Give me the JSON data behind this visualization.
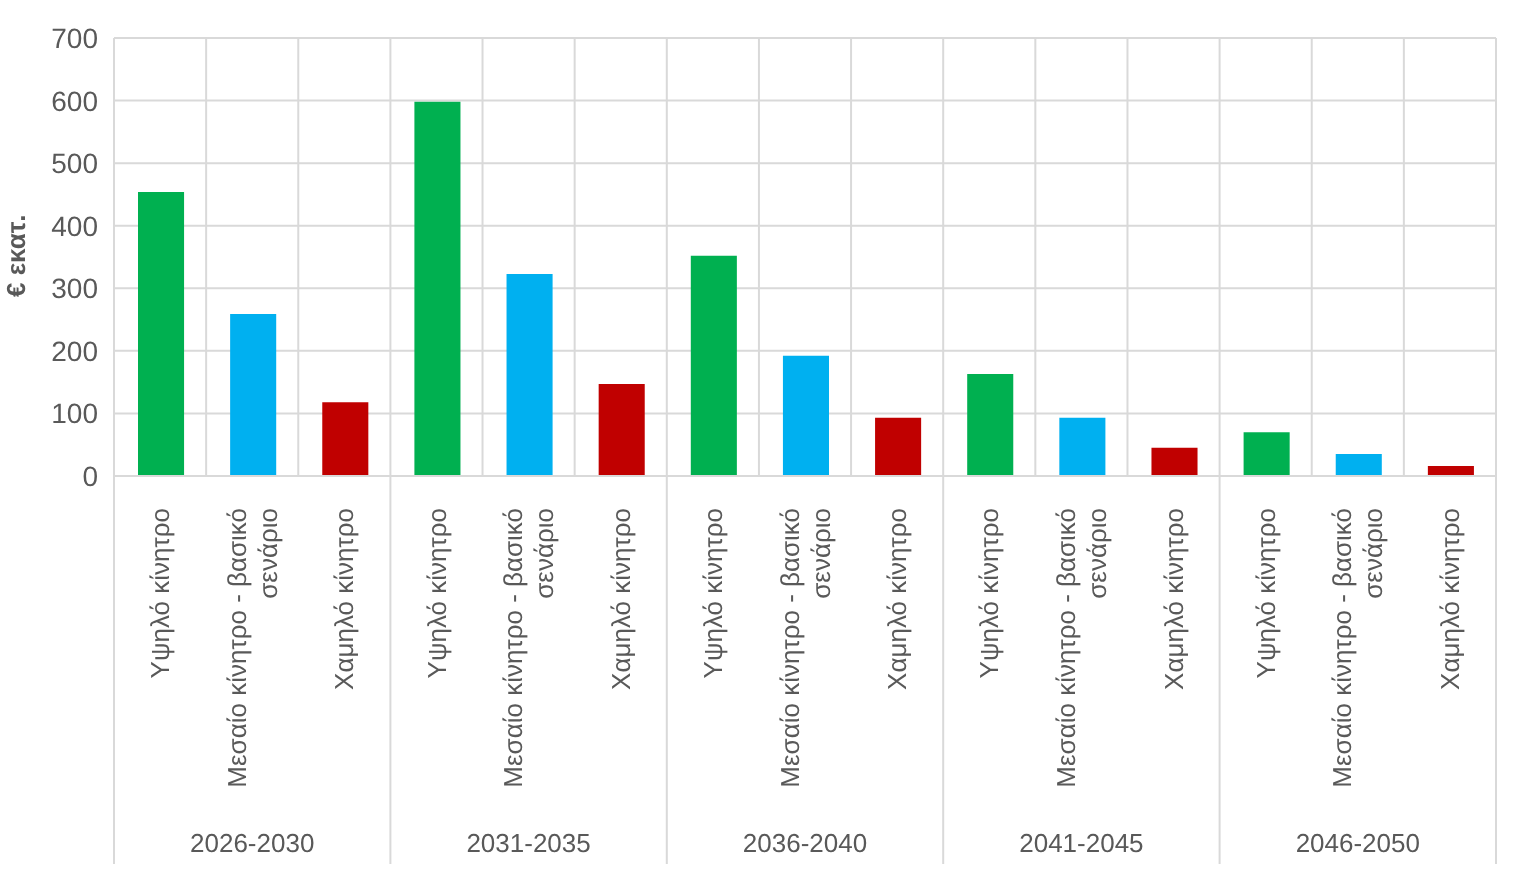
{
  "chart_data": {
    "type": "bar",
    "ylabel": "€ εκατ.",
    "categories": [
      "Υψηλό κίνητρο",
      "Μεσαίο κίνητρο - βασικό σενάριο",
      "Χαμηλό κίνητρο",
      "Υψηλό κίνητρο",
      "Μεσαίο κίνητρο - βασικό σενάριο",
      "Χαμηλό κίνητρο",
      "Υψηλό κίνητρο",
      "Μεσαίο κίνητρο - βασικό σενάριο",
      "Χαμηλό κίνητρο",
      "Υψηλό κίνητρο",
      "Μεσαίο κίνητρο - βασικό σενάριο",
      "Χαμηλό κίνητρο",
      "Υψηλό κίνητρο",
      "Μεσαίο κίνητρο - βασικό σενάριο",
      "Χαμηλό κίνητρο"
    ],
    "values": [
      454,
      259,
      118,
      598,
      323,
      147,
      352,
      192,
      93,
      163,
      93,
      45,
      70,
      35,
      16
    ],
    "colors": [
      "#00b050",
      "#00b0f0",
      "#c00000",
      "#00b050",
      "#00b0f0",
      "#c00000",
      "#00b050",
      "#00b0f0",
      "#c00000",
      "#00b050",
      "#00b0f0",
      "#c00000",
      "#00b050",
      "#00b0f0",
      "#c00000"
    ],
    "annotations": [
      "2026-2030",
      "2031-2035",
      "2036-2040",
      "2041-2045",
      "2046-2050"
    ],
    "ylim": [
      0,
      700
    ],
    "yticks": [
      0,
      100,
      200,
      300,
      400,
      500,
      600,
      700
    ],
    "grid": true
  }
}
